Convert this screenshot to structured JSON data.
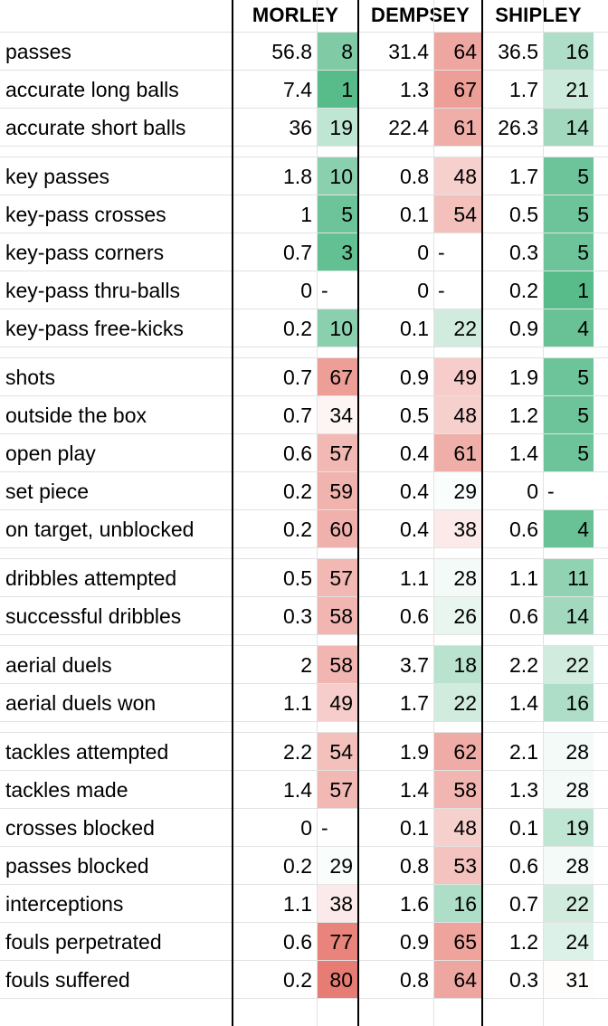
{
  "players": [
    "MORLEY",
    "DEMPSEY",
    "SHIPLEY"
  ],
  "colors": {
    "good": "#57bb8a",
    "neutral": "#ffffff",
    "bad": "#e67c73"
  },
  "chart_data": {
    "type": "table",
    "columns": [
      "MORLEY",
      "DEMPSEY",
      "SHIPLEY"
    ],
    "groups": [
      {
        "rows": [
          {
            "stat": "passes",
            "values": [
              [
                "56.8",
                "8"
              ],
              [
                "31.4",
                "64"
              ],
              [
                "36.5",
                "16"
              ]
            ]
          },
          {
            "stat": "accurate long balls",
            "values": [
              [
                "7.4",
                "1"
              ],
              [
                "1.3",
                "67"
              ],
              [
                "1.7",
                "21"
              ]
            ]
          },
          {
            "stat": "accurate short balls",
            "values": [
              [
                "36",
                "19"
              ],
              [
                "22.4",
                "61"
              ],
              [
                "26.3",
                "14"
              ]
            ]
          }
        ]
      },
      {
        "rows": [
          {
            "stat": "key passes",
            "values": [
              [
                "1.8",
                "10"
              ],
              [
                "0.8",
                "48"
              ],
              [
                "1.7",
                "5"
              ]
            ]
          },
          {
            "stat": "key-pass crosses",
            "values": [
              [
                "1",
                "5"
              ],
              [
                "0.1",
                "54"
              ],
              [
                "0.5",
                "5"
              ]
            ]
          },
          {
            "stat": "key-pass corners",
            "values": [
              [
                "0.7",
                "3"
              ],
              [
                "0",
                "-"
              ],
              [
                "0.3",
                "5"
              ]
            ]
          },
          {
            "stat": "key-pass thru-balls",
            "values": [
              [
                "0",
                "-"
              ],
              [
                "0",
                "-"
              ],
              [
                "0.2",
                "1"
              ]
            ]
          },
          {
            "stat": "key-pass free-kicks",
            "values": [
              [
                "0.2",
                "10"
              ],
              [
                "0.1",
                "22"
              ],
              [
                "0.9",
                "4"
              ]
            ]
          }
        ]
      },
      {
        "rows": [
          {
            "stat": "shots",
            "values": [
              [
                "0.7",
                "67"
              ],
              [
                "0.9",
                "49"
              ],
              [
                "1.9",
                "5"
              ]
            ]
          },
          {
            "stat": "outside the box",
            "values": [
              [
                "0.7",
                "34"
              ],
              [
                "0.5",
                "48"
              ],
              [
                "1.2",
                "5"
              ]
            ]
          },
          {
            "stat": "open play",
            "values": [
              [
                "0.6",
                "57"
              ],
              [
                "0.4",
                "61"
              ],
              [
                "1.4",
                "5"
              ]
            ]
          },
          {
            "stat": "set piece",
            "values": [
              [
                "0.2",
                "59"
              ],
              [
                "0.4",
                "29"
              ],
              [
                "0",
                "-"
              ]
            ]
          },
          {
            "stat": "on target, unblocked",
            "values": [
              [
                "0.2",
                "60"
              ],
              [
                "0.4",
                "38"
              ],
              [
                "0.6",
                "4"
              ]
            ]
          }
        ]
      },
      {
        "rows": [
          {
            "stat": "dribbles attempted",
            "values": [
              [
                "0.5",
                "57"
              ],
              [
                "1.1",
                "28"
              ],
              [
                "1.1",
                "11"
              ]
            ]
          },
          {
            "stat": "successful dribbles",
            "values": [
              [
                "0.3",
                "58"
              ],
              [
                "0.6",
                "26"
              ],
              [
                "0.6",
                "14"
              ]
            ]
          }
        ]
      },
      {
        "rows": [
          {
            "stat": "aerial duels",
            "values": [
              [
                "2",
                "58"
              ],
              [
                "3.7",
                "18"
              ],
              [
                "2.2",
                "22"
              ]
            ]
          },
          {
            "stat": "aerial duels won",
            "values": [
              [
                "1.1",
                "49"
              ],
              [
                "1.7",
                "22"
              ],
              [
                "1.4",
                "16"
              ]
            ]
          }
        ]
      },
      {
        "rows": [
          {
            "stat": "tackles attempted",
            "values": [
              [
                "2.2",
                "54"
              ],
              [
                "1.9",
                "62"
              ],
              [
                "2.1",
                "28"
              ]
            ]
          },
          {
            "stat": "tackles made",
            "values": [
              [
                "1.4",
                "57"
              ],
              [
                "1.4",
                "58"
              ],
              [
                "1.3",
                "28"
              ]
            ]
          },
          {
            "stat": "crosses blocked",
            "values": [
              [
                "0",
                "-"
              ],
              [
                "0.1",
                "48"
              ],
              [
                "0.1",
                "19"
              ]
            ]
          },
          {
            "stat": "passes blocked",
            "values": [
              [
                "0.2",
                "29"
              ],
              [
                "0.8",
                "53"
              ],
              [
                "0.6",
                "28"
              ]
            ]
          },
          {
            "stat": "interceptions",
            "values": [
              [
                "1.1",
                "38"
              ],
              [
                "1.6",
                "16"
              ],
              [
                "0.7",
                "22"
              ]
            ]
          },
          {
            "stat": "fouls perpetrated",
            "values": [
              [
                "0.6",
                "77"
              ],
              [
                "0.9",
                "65"
              ],
              [
                "1.2",
                "24"
              ]
            ]
          },
          {
            "stat": "fouls suffered",
            "values": [
              [
                "0.2",
                "80"
              ],
              [
                "0.8",
                "64"
              ],
              [
                "0.3",
                "31"
              ]
            ]
          }
        ]
      }
    ]
  }
}
